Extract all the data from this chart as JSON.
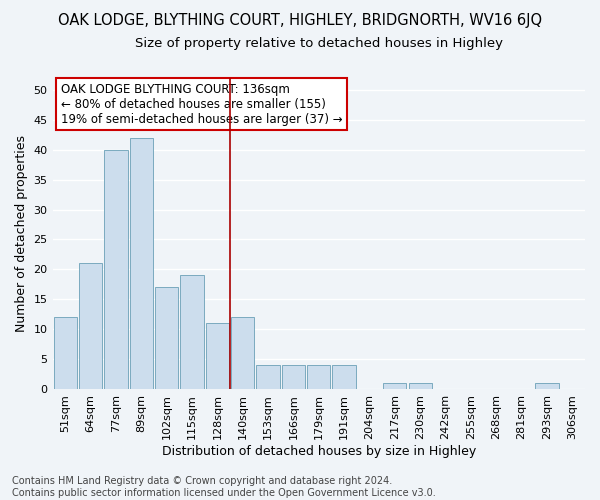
{
  "title": "OAK LODGE, BLYTHING COURT, HIGHLEY, BRIDGNORTH, WV16 6JQ",
  "subtitle": "Size of property relative to detached houses in Highley",
  "xlabel": "Distribution of detached houses by size in Highley",
  "ylabel": "Number of detached properties",
  "categories": [
    "51sqm",
    "64sqm",
    "77sqm",
    "89sqm",
    "102sqm",
    "115sqm",
    "128sqm",
    "140sqm",
    "153sqm",
    "166sqm",
    "179sqm",
    "191sqm",
    "204sqm",
    "217sqm",
    "230sqm",
    "242sqm",
    "255sqm",
    "268sqm",
    "281sqm",
    "293sqm",
    "306sqm"
  ],
  "values": [
    12,
    21,
    40,
    42,
    17,
    19,
    11,
    12,
    4,
    4,
    4,
    4,
    0,
    1,
    1,
    0,
    0,
    0,
    0,
    1,
    0
  ],
  "bar_color": "#ccdded",
  "bar_edge_color": "#7aaabf",
  "vline_color": "#aa0000",
  "vline_x_index": 7,
  "annotation_line1": "OAK LODGE BLYTHING COURT: 136sqm",
  "annotation_line2": "← 80% of detached houses are smaller (155)",
  "annotation_line3": "19% of semi-detached houses are larger (37) →",
  "annotation_box_facecolor": "#ffffff",
  "annotation_box_edgecolor": "#cc0000",
  "footer_line1": "Contains HM Land Registry data © Crown copyright and database right 2024.",
  "footer_line2": "Contains public sector information licensed under the Open Government Licence v3.0.",
  "ylim": [
    0,
    52
  ],
  "yticks": [
    0,
    5,
    10,
    15,
    20,
    25,
    30,
    35,
    40,
    45,
    50
  ],
  "fig_background": "#f0f4f8",
  "plot_background": "#f0f4f8",
  "grid_color": "#ffffff",
  "title_fontsize": 10.5,
  "subtitle_fontsize": 9.5,
  "axis_label_fontsize": 9,
  "tick_fontsize": 8,
  "annotation_fontsize": 8.5,
  "footer_fontsize": 7
}
